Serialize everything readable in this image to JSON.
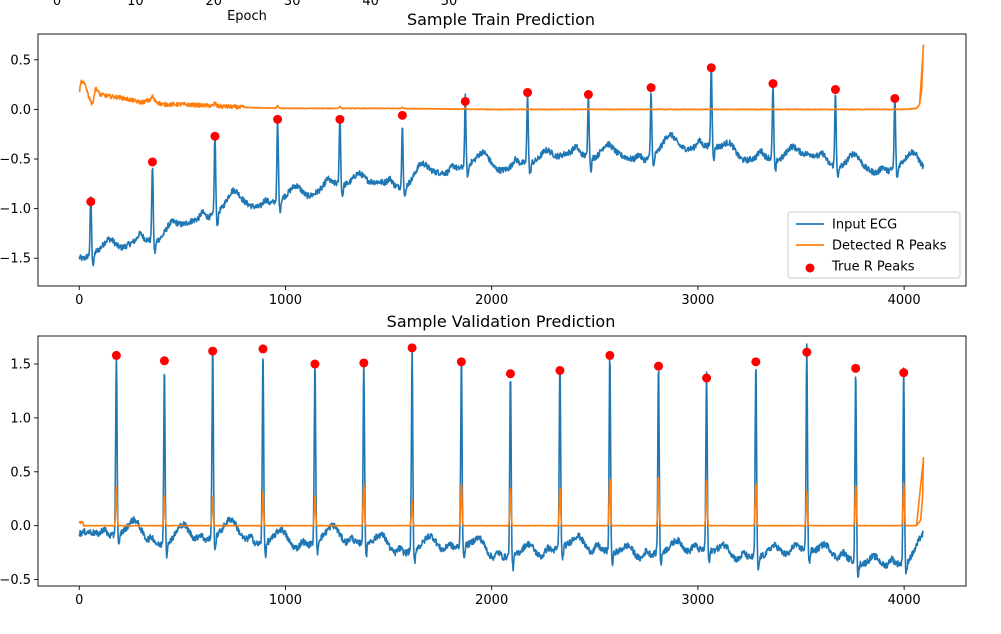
{
  "previous_panel": {
    "xticks": [
      0,
      10,
      20,
      30,
      40,
      50
    ],
    "xlabel": "Epoch"
  },
  "colors": {
    "ecg": "#1f77b4",
    "detected": "#ff7f0e",
    "true_peaks": "#ff0000"
  },
  "chart_data": [
    {
      "type": "line",
      "title": "Sample Train Prediction",
      "xlim": [
        -200,
        4300
      ],
      "ylim": [
        -1.78,
        0.76
      ],
      "xticks": [
        0,
        1000,
        2000,
        3000,
        4000
      ],
      "yticks": [
        0.5,
        0.0,
        -0.5,
        -1.0,
        -1.5
      ],
      "ytick_labels": [
        "0.5",
        "0.0",
        "−0.5",
        "−1.0",
        "−1.5"
      ],
      "legend": {
        "placement": "lower-right",
        "entries": [
          "Input ECG",
          "Detected R Peaks",
          "True R Peaks"
        ]
      },
      "n_samples": 4096,
      "peaks": {
        "x": [
          56,
          355,
          658,
          962,
          1264,
          1567,
          1872,
          2174,
          2469,
          2773,
          3065,
          3364,
          3667,
          3955
        ],
        "y": [
          -0.93,
          -0.53,
          -0.27,
          -0.1,
          -0.1,
          -0.06,
          0.08,
          0.17,
          0.15,
          0.22,
          0.42,
          0.26,
          0.2,
          0.11
        ]
      },
      "baseline_trend": {
        "x": [
          0,
          200,
          400,
          600,
          800,
          1000,
          1200,
          1400,
          1600,
          1800,
          2000,
          2200,
          2400,
          2600,
          2800,
          3000,
          3200,
          3400,
          3600,
          3800,
          4000,
          4080
        ],
        "y": [
          -1.55,
          -1.42,
          -1.25,
          -1.1,
          -0.98,
          -0.88,
          -0.82,
          -0.76,
          -0.7,
          -0.64,
          -0.57,
          -0.52,
          -0.5,
          -0.47,
          -0.44,
          -0.4,
          -0.45,
          -0.5,
          -0.53,
          -0.58,
          -0.59,
          -0.63
        ]
      },
      "detected_curve": {
        "x": [
          0,
          10,
          30,
          50,
          60,
          80,
          100,
          150,
          200,
          300,
          355,
          400,
          500,
          600,
          700,
          800,
          1000,
          1500,
          2000,
          3000,
          4000,
          4060,
          4075,
          4085,
          4090,
          4093
        ],
        "y": [
          0.18,
          0.28,
          0.25,
          0.1,
          0.02,
          0.22,
          0.15,
          0.13,
          0.12,
          0.07,
          0.1,
          0.05,
          0.05,
          0.04,
          0.03,
          0.02,
          0.01,
          0.01,
          0.0,
          0.0,
          0.0,
          0.01,
          0.05,
          0.2,
          0.45,
          0.65
        ]
      }
    },
    {
      "type": "line",
      "title": "Sample Validation Prediction",
      "xlim": [
        -200,
        4300
      ],
      "ylim": [
        -0.56,
        1.76
      ],
      "xticks": [
        0,
        1000,
        2000,
        3000,
        4000
      ],
      "yticks": [
        1.5,
        1.0,
        0.5,
        0.0,
        -0.5
      ],
      "ytick_labels": [
        "1.5",
        "1.0",
        "0.5",
        "0.0",
        "−0.5"
      ],
      "n_samples": 4096,
      "peaks": {
        "x": [
          180,
          413,
          647,
          891,
          1143,
          1380,
          1614,
          1853,
          2091,
          2331,
          2573,
          2809,
          3042,
          3281,
          3528,
          3765,
          3998
        ],
        "y": [
          1.58,
          1.53,
          1.62,
          1.64,
          1.5,
          1.51,
          1.65,
          1.52,
          1.41,
          1.44,
          1.58,
          1.48,
          1.37,
          1.52,
          1.61,
          1.46,
          1.42
        ]
      },
      "detected_peaks": [
        0.36,
        0.29,
        0.28,
        0.33,
        0.29,
        0.39,
        0.24,
        0.4,
        0.36,
        0.36,
        0.45,
        0.47,
        0.42,
        0.41,
        0.32,
        0.39,
        0.4
      ],
      "baseline_trend": {
        "x": [
          0,
          500,
          1000,
          1500,
          2000,
          2500,
          3000,
          3500,
          3800,
          4000,
          4090
        ],
        "y": [
          -0.1,
          -0.12,
          -0.15,
          -0.2,
          -0.27,
          -0.25,
          -0.28,
          -0.28,
          -0.33,
          -0.4,
          -0.22
        ]
      },
      "detected_end": {
        "x": [
          4060,
          4080,
          4090,
          4093
        ],
        "y": [
          0.0,
          0.05,
          0.28,
          0.63
        ]
      }
    }
  ]
}
